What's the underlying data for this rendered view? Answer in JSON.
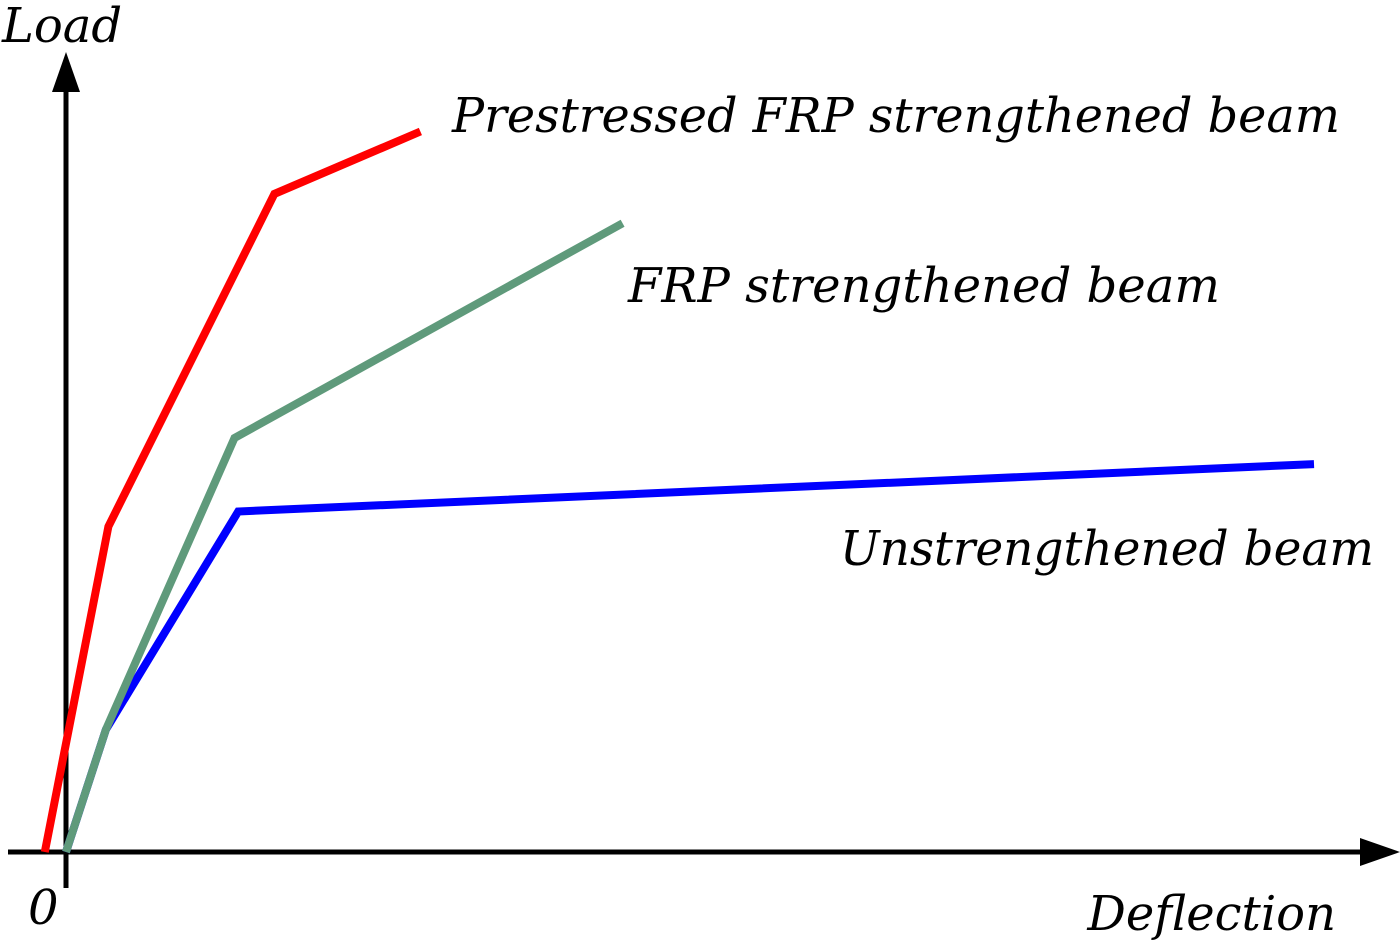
{
  "chart_data": {
    "type": "line",
    "title": "",
    "xlabel": "Deflection",
    "ylabel": "Load",
    "origin_label": "0",
    "xlim": [
      0,
      100
    ],
    "ylim": [
      0,
      100
    ],
    "grid": false,
    "legend": "inline labels",
    "series": [
      {
        "name": "Prestressed FRP strengthened beam",
        "color": "#ff0000",
        "points": [
          [
            -1.7,
            0
          ],
          [
            3.4,
            41.2
          ],
          [
            16.7,
            83.3
          ],
          [
            28.4,
            91.2
          ]
        ]
      },
      {
        "name": "FRP strengthened beam",
        "color": "#5f9a7b",
        "points": [
          [
            0,
            0
          ],
          [
            3.2,
            15.5
          ],
          [
            13.5,
            52.4
          ],
          [
            44.6,
            79.6
          ]
        ]
      },
      {
        "name": "Unstrengthened beam",
        "color": "#0000ff",
        "points": [
          [
            0,
            0
          ],
          [
            3.2,
            15.5
          ],
          [
            13.8,
            43.1
          ],
          [
            100.0,
            49.1
          ]
        ]
      }
    ]
  }
}
